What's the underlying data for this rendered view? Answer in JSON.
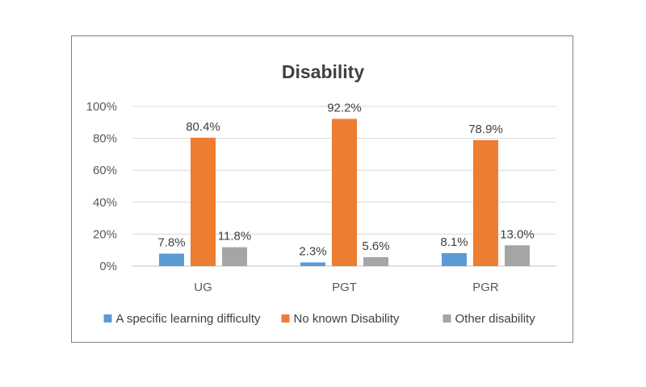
{
  "chart_data": {
    "type": "bar",
    "title": "Disability",
    "categories": [
      "UG",
      "PGT",
      "PGR"
    ],
    "series": [
      {
        "name": "A specific learning difficulty",
        "color": "#5b9bd5",
        "values": [
          7.8,
          2.3,
          8.1
        ],
        "labels": [
          "7.8%",
          "2.3%",
          "8.1%"
        ]
      },
      {
        "name": "No known Disability",
        "color": "#ed7d31",
        "values": [
          80.4,
          92.2,
          78.9
        ],
        "labels": [
          "80.4%",
          "92.2%",
          "78.9%"
        ]
      },
      {
        "name": "Other disability",
        "color": "#a5a5a5",
        "values": [
          11.8,
          5.6,
          13.0
        ],
        "labels": [
          "11.8%",
          "5.6%",
          "13.0%"
        ]
      }
    ],
    "yticks": [
      0,
      20,
      40,
      60,
      80,
      100
    ],
    "ytick_labels": [
      "0%",
      "20%",
      "40%",
      "60%",
      "80%",
      "100%"
    ],
    "ylim": [
      0,
      100
    ],
    "xlabel": "",
    "ylabel": "",
    "grid": true,
    "legend_position": "bottom"
  }
}
